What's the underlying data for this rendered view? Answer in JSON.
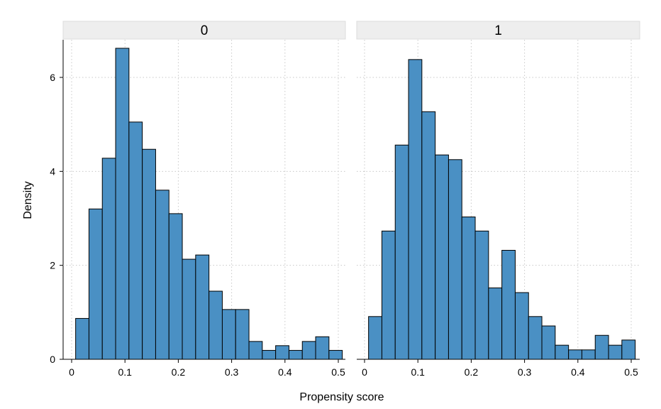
{
  "chart_data": {
    "type": "bar",
    "xlabel": "Propensity score",
    "ylabel": "Density",
    "xlim": [
      0,
      0.5
    ],
    "ylim": [
      0,
      6.6
    ],
    "x_ticks": [
      "0",
      "0.1",
      "0.2",
      "0.3",
      "0.4",
      "0.5"
    ],
    "y_ticks": [
      "0",
      "2",
      "4",
      "6"
    ],
    "grid": true,
    "bar_color": "#4a90c4",
    "bar_edge_color": "#000000",
    "strip_color": "#eeeeee",
    "panels": [
      {
        "label": "0",
        "bin_edges": [
          0.0075,
          0.0325,
          0.0575,
          0.0825,
          0.1075,
          0.1325,
          0.1575,
          0.1825,
          0.2075,
          0.2325,
          0.2575,
          0.2825,
          0.3075,
          0.3325,
          0.3575,
          0.3825,
          0.4075,
          0.4325,
          0.4575,
          0.4825
        ],
        "values": [
          0.87,
          3.2,
          4.28,
          6.62,
          5.05,
          4.47,
          3.6,
          3.1,
          2.13,
          2.22,
          1.45,
          1.06,
          1.06,
          0.38,
          0.19,
          0.29,
          0.19,
          0.38,
          0.48,
          0.19
        ]
      },
      {
        "label": "1",
        "bin_edges": [
          0.0075,
          0.0325,
          0.0575,
          0.0825,
          0.1075,
          0.1325,
          0.1575,
          0.1825,
          0.2075,
          0.2325,
          0.2575,
          0.2825,
          0.3075,
          0.3325,
          0.3575,
          0.3825,
          0.4075,
          0.4325,
          0.4575,
          0.4825
        ],
        "values": [
          0.91,
          2.73,
          4.56,
          6.38,
          5.27,
          4.35,
          4.25,
          3.03,
          2.73,
          1.52,
          2.32,
          1.42,
          0.91,
          0.71,
          0.3,
          0.2,
          0.2,
          0.51,
          0.3,
          0.41
        ]
      }
    ]
  }
}
